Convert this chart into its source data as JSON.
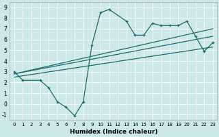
{
  "title": "",
  "xlabel": "Humidex (Indice chaleur)",
  "ylabel": "",
  "xlim": [
    -0.5,
    23.5
  ],
  "ylim": [
    -1.5,
    9.5
  ],
  "xticks": [
    0,
    1,
    2,
    3,
    4,
    5,
    6,
    7,
    8,
    9,
    10,
    11,
    12,
    13,
    14,
    15,
    16,
    17,
    18,
    19,
    20,
    21,
    22,
    23
  ],
  "yticks": [
    -1,
    0,
    1,
    2,
    3,
    4,
    5,
    6,
    7,
    8,
    9
  ],
  "bg_color": "#cce8e8",
  "line_color": "#1a6b6b",
  "line1_x": [
    0,
    1,
    3,
    4,
    5,
    6,
    7,
    8,
    9,
    10,
    11,
    13,
    14,
    15,
    16,
    17,
    18,
    19,
    20,
    21,
    22,
    23
  ],
  "line1_y": [
    3.0,
    2.2,
    2.2,
    1.5,
    0.2,
    -0.3,
    -1.1,
    0.2,
    5.5,
    8.5,
    8.8,
    7.7,
    6.4,
    6.4,
    7.5,
    7.3,
    7.3,
    7.3,
    7.7,
    6.3,
    4.9,
    5.7
  ],
  "line2_x": [
    0,
    23
  ],
  "line2_y": [
    2.8,
    7.0
  ],
  "line3_x": [
    0,
    23
  ],
  "line3_y": [
    2.8,
    6.3
  ],
  "line4_x": [
    0,
    23
  ],
  "line4_y": [
    2.5,
    5.3
  ]
}
